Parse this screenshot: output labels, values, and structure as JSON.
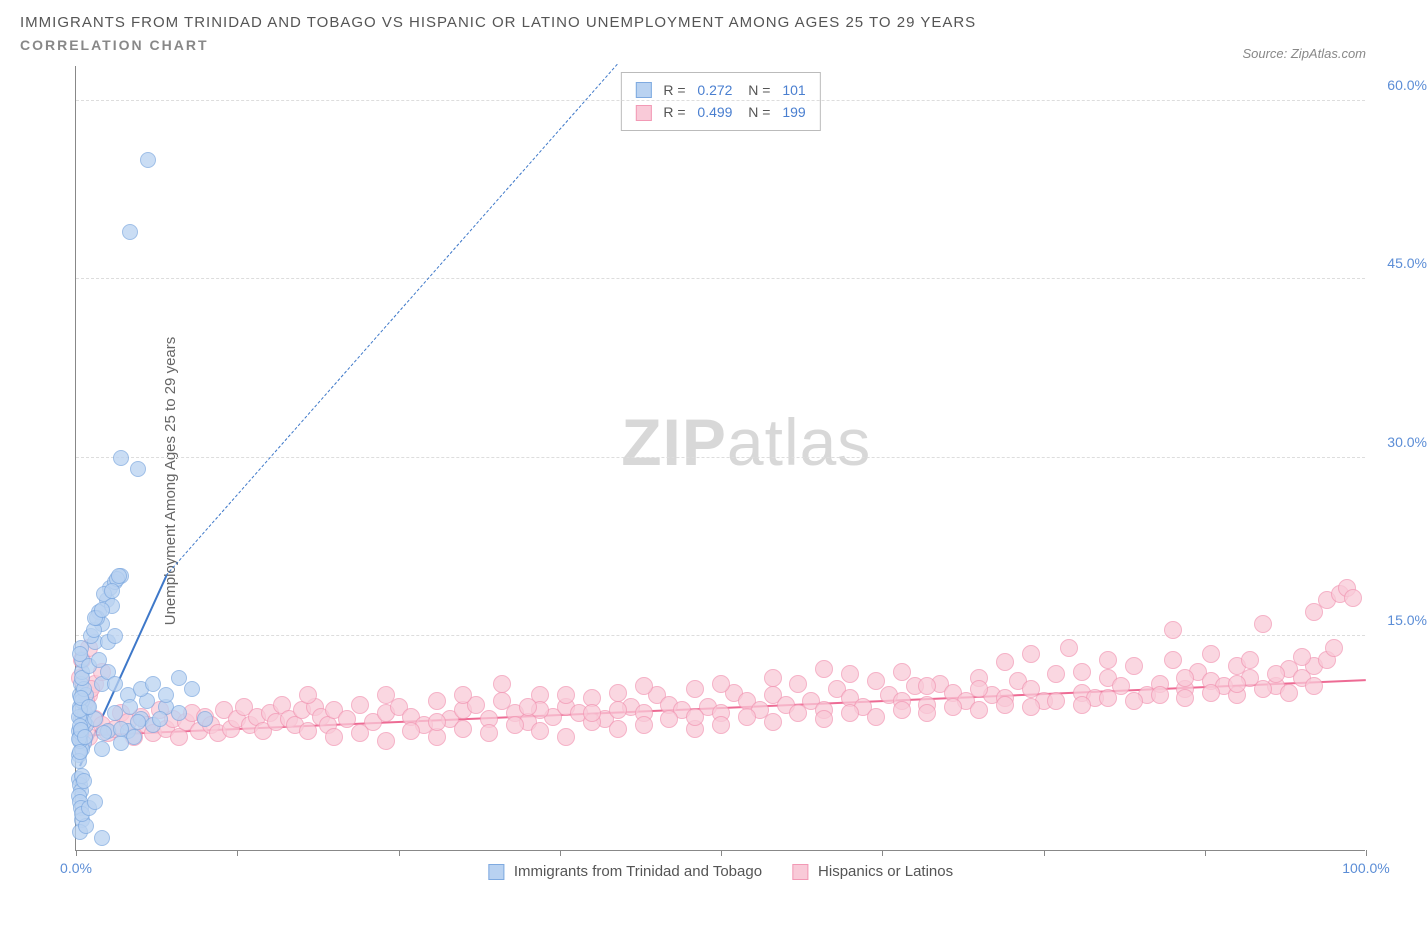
{
  "header": {
    "title": "IMMIGRANTS FROM TRINIDAD AND TOBAGO VS HISPANIC OR LATINO UNEMPLOYMENT AMONG AGES 25 TO 29 YEARS",
    "subtitle": "CORRELATION CHART",
    "source": "Source: ZipAtlas.com"
  },
  "chart": {
    "type": "scatter",
    "ylabel": "Unemployment Among Ages 25 to 29 years",
    "xlim": [
      0,
      100
    ],
    "ylim": [
      -3,
      63
    ],
    "xticks": [
      0,
      12.5,
      25,
      37.5,
      50,
      62.5,
      75,
      87.5,
      100
    ],
    "xtick_labels": {
      "0": "0.0%",
      "100": "100.0%"
    },
    "yticks": [
      15,
      30,
      45,
      60
    ],
    "ytick_labels": [
      "15.0%",
      "30.0%",
      "45.0%",
      "60.0%"
    ],
    "grid_color": "#dddddd",
    "axis_color": "#888888",
    "background_color": "#ffffff",
    "watermark": {
      "pre": "ZIP",
      "post": "atlas"
    },
    "series_a": {
      "name": "Immigrants from Trinidad and Tobago",
      "color_fill": "#b9d2f1",
      "color_stroke": "#7faae0",
      "marker_radius": 8,
      "R": "0.272",
      "N": "101",
      "trend": {
        "x1": 0.3,
        "y1": 4,
        "x2": 7,
        "y2": 20,
        "dash_to_x": 42,
        "dash_to_y": 63,
        "color": "#3e78c9"
      },
      "points": [
        [
          0.2,
          7
        ],
        [
          0.3,
          6.5
        ],
        [
          0.5,
          7.2
        ],
        [
          0.4,
          8
        ],
        [
          0.6,
          6
        ],
        [
          0.3,
          9
        ],
        [
          0.8,
          7.5
        ],
        [
          0.2,
          5
        ],
        [
          0.5,
          5.5
        ],
        [
          0.3,
          10
        ],
        [
          0.7,
          8.5
        ],
        [
          0.4,
          11
        ],
        [
          0.9,
          9
        ],
        [
          0.5,
          12
        ],
        [
          0.3,
          6.2
        ],
        [
          0.6,
          7.8
        ],
        [
          0.2,
          8.2
        ],
        [
          0.4,
          6.8
        ],
        [
          0.8,
          10
        ],
        [
          0.3,
          7.4
        ],
        [
          0.5,
          9.5
        ],
        [
          0.6,
          10.5
        ],
        [
          0.2,
          6.3
        ],
        [
          0.4,
          7.1
        ],
        [
          0.3,
          8.8
        ],
        [
          0.7,
          6.5
        ],
        [
          0.5,
          11.5
        ],
        [
          0.2,
          4.5
        ],
        [
          0.3,
          5.2
        ],
        [
          0.4,
          9.8
        ],
        [
          0.2,
          3
        ],
        [
          0.3,
          2.5
        ],
        [
          0.5,
          3.2
        ],
        [
          0.4,
          2
        ],
        [
          0.6,
          2.8
        ],
        [
          0.2,
          1.5
        ],
        [
          0.3,
          1
        ],
        [
          0.4,
          0.5
        ],
        [
          0.5,
          -0.5
        ],
        [
          0.3,
          -1.5
        ],
        [
          0.8,
          -1
        ],
        [
          0.5,
          13
        ],
        [
          0.4,
          14
        ],
        [
          0.3,
          13.5
        ],
        [
          1.0,
          12.5
        ],
        [
          1.5,
          14.5
        ],
        [
          2.0,
          16
        ],
        [
          1.8,
          17
        ],
        [
          2.4,
          18
        ],
        [
          2.6,
          19
        ],
        [
          2.2,
          18.5
        ],
        [
          3.0,
          19.5
        ],
        [
          1.2,
          15
        ],
        [
          1.4,
          15.5
        ],
        [
          1.6,
          16.5
        ],
        [
          2.8,
          17.5
        ],
        [
          3.5,
          20
        ],
        [
          3.2,
          19.8
        ],
        [
          4,
          7
        ],
        [
          5,
          8
        ],
        [
          6,
          7.5
        ],
        [
          7,
          9
        ],
        [
          8,
          8.5
        ],
        [
          9,
          10.5
        ],
        [
          4.5,
          6.5
        ],
        [
          5.5,
          9.5
        ],
        [
          6.5,
          8
        ],
        [
          10,
          8
        ],
        [
          3.5,
          6
        ],
        [
          2.5,
          7
        ],
        [
          2,
          5.5
        ],
        [
          1.5,
          8
        ],
        [
          1,
          9
        ],
        [
          3,
          8.5
        ],
        [
          4,
          10
        ],
        [
          2,
          11
        ],
        [
          2.5,
          12
        ],
        [
          1.8,
          13
        ],
        [
          3,
          11
        ],
        [
          4.2,
          9
        ],
        [
          5,
          10.5
        ],
        [
          6,
          11
        ],
        [
          7,
          10
        ],
        [
          8,
          11.5
        ],
        [
          3.5,
          7.2
        ],
        [
          4.8,
          7.8
        ],
        [
          2.2,
          6.8
        ],
        [
          5.6,
          55
        ],
        [
          4.2,
          49
        ],
        [
          3.5,
          30
        ],
        [
          4.8,
          29
        ],
        [
          2.5,
          14.5
        ],
        [
          3,
          15
        ],
        [
          1.5,
          16.5
        ],
        [
          2,
          17.2
        ],
        [
          2.8,
          18.8
        ],
        [
          3.3,
          20
        ],
        [
          0.5,
          0
        ],
        [
          1,
          0.5
        ],
        [
          1.5,
          1
        ],
        [
          2,
          -2
        ]
      ]
    },
    "series_b": {
      "name": "Hispanics or Latinos",
      "color_fill": "#f9cad8",
      "color_stroke": "#f299b5",
      "marker_radius": 9,
      "R": "0.499",
      "N": "199",
      "trend": {
        "x1": 0,
        "y1": 6.5,
        "x2": 100,
        "y2": 11.2,
        "color": "#ed6b94"
      },
      "points": [
        [
          0.5,
          7
        ],
        [
          1,
          6.5
        ],
        [
          1.5,
          8
        ],
        [
          2,
          7.5
        ],
        [
          2.5,
          6.8
        ],
        [
          3,
          7.2
        ],
        [
          3.5,
          8.5
        ],
        [
          4,
          7.8
        ],
        [
          4.5,
          6.5
        ],
        [
          5,
          8.2
        ],
        [
          5.5,
          7.5
        ],
        [
          6,
          6.8
        ],
        [
          6.5,
          8.8
        ],
        [
          7,
          7.2
        ],
        [
          7.5,
          8
        ],
        [
          8,
          6.5
        ],
        [
          8.5,
          7.8
        ],
        [
          9,
          8.5
        ],
        [
          9.5,
          7
        ],
        [
          10,
          8.2
        ],
        [
          10.5,
          7.5
        ],
        [
          11,
          6.8
        ],
        [
          11.5,
          8.8
        ],
        [
          12,
          7.2
        ],
        [
          12.5,
          8
        ],
        [
          13,
          9
        ],
        [
          13.5,
          7.5
        ],
        [
          14,
          8.2
        ],
        [
          14.5,
          7
        ],
        [
          15,
          8.5
        ],
        [
          15.5,
          7.8
        ],
        [
          16,
          9.2
        ],
        [
          16.5,
          8
        ],
        [
          17,
          7.5
        ],
        [
          17.5,
          8.8
        ],
        [
          18,
          7
        ],
        [
          18.5,
          9
        ],
        [
          19,
          8.2
        ],
        [
          19.5,
          7.5
        ],
        [
          20,
          8.8
        ],
        [
          21,
          8
        ],
        [
          22,
          9.2
        ],
        [
          23,
          7.8
        ],
        [
          24,
          8.5
        ],
        [
          25,
          9
        ],
        [
          26,
          8.2
        ],
        [
          27,
          7.5
        ],
        [
          28,
          9.5
        ],
        [
          29,
          8
        ],
        [
          30,
          8.8
        ],
        [
          31,
          9.2
        ],
        [
          32,
          8
        ],
        [
          33,
          9.5
        ],
        [
          34,
          8.5
        ],
        [
          35,
          7.8
        ],
        [
          36,
          10
        ],
        [
          37,
          8.2
        ],
        [
          38,
          9
        ],
        [
          39,
          8.5
        ],
        [
          40,
          9.8
        ],
        [
          41,
          8
        ],
        [
          42,
          10.2
        ],
        [
          43,
          9
        ],
        [
          44,
          8.5
        ],
        [
          45,
          10
        ],
        [
          46,
          9.2
        ],
        [
          47,
          8.8
        ],
        [
          48,
          10.5
        ],
        [
          49,
          9
        ],
        [
          50,
          8.5
        ],
        [
          51,
          10.2
        ],
        [
          52,
          9.5
        ],
        [
          53,
          8.8
        ],
        [
          54,
          10
        ],
        [
          55,
          9.2
        ],
        [
          56,
          11
        ],
        [
          57,
          9.5
        ],
        [
          58,
          8.8
        ],
        [
          59,
          10.5
        ],
        [
          60,
          9.8
        ],
        [
          61,
          9
        ],
        [
          62,
          11.2
        ],
        [
          63,
          10
        ],
        [
          64,
          9.5
        ],
        [
          65,
          10.8
        ],
        [
          66,
          9.2
        ],
        [
          67,
          11
        ],
        [
          68,
          10.2
        ],
        [
          69,
          9.5
        ],
        [
          70,
          11.5
        ],
        [
          71,
          10
        ],
        [
          72,
          9.8
        ],
        [
          73,
          11.2
        ],
        [
          74,
          10.5
        ],
        [
          75,
          9.5
        ],
        [
          76,
          11.8
        ],
        [
          77,
          14
        ],
        [
          78,
          10.2
        ],
        [
          79,
          9.8
        ],
        [
          80,
          11.5
        ],
        [
          81,
          10.8
        ],
        [
          82,
          12.5
        ],
        [
          83,
          10
        ],
        [
          84,
          11
        ],
        [
          85,
          15.5
        ],
        [
          86,
          10.5
        ],
        [
          87,
          12
        ],
        [
          88,
          11.2
        ],
        [
          89,
          10.8
        ],
        [
          90,
          12.5
        ],
        [
          91,
          11.5
        ],
        [
          92,
          16
        ],
        [
          93,
          10.8
        ],
        [
          94,
          12.2
        ],
        [
          95,
          11.5
        ],
        [
          96,
          17
        ],
        [
          97,
          18
        ],
        [
          98,
          18.5
        ],
        [
          98.5,
          19
        ],
        [
          99,
          18.2
        ],
        [
          1,
          10
        ],
        [
          1.5,
          11
        ],
        [
          2,
          12
        ],
        [
          0.5,
          13
        ],
        [
          1,
          14
        ],
        [
          0.8,
          9.5
        ],
        [
          1.2,
          10.5
        ],
        [
          0.3,
          11.5
        ],
        [
          20,
          6.5
        ],
        [
          22,
          6.8
        ],
        [
          24,
          6.2
        ],
        [
          26,
          7
        ],
        [
          28,
          6.5
        ],
        [
          30,
          7.2
        ],
        [
          32,
          6.8
        ],
        [
          34,
          7.5
        ],
        [
          36,
          7
        ],
        [
          38,
          6.5
        ],
        [
          40,
          7.8
        ],
        [
          42,
          7.2
        ],
        [
          44,
          7.5
        ],
        [
          46,
          8
        ],
        [
          48,
          7.2
        ],
        [
          50,
          7.5
        ],
        [
          52,
          8.2
        ],
        [
          54,
          7.8
        ],
        [
          56,
          8.5
        ],
        [
          58,
          8
        ],
        [
          60,
          8.5
        ],
        [
          62,
          8.2
        ],
        [
          64,
          8.8
        ],
        [
          66,
          8.5
        ],
        [
          68,
          9
        ],
        [
          70,
          8.8
        ],
        [
          72,
          9.2
        ],
        [
          74,
          9
        ],
        [
          76,
          9.5
        ],
        [
          78,
          9.2
        ],
        [
          80,
          9.8
        ],
        [
          82,
          9.5
        ],
        [
          84,
          10
        ],
        [
          86,
          9.8
        ],
        [
          88,
          10.2
        ],
        [
          90,
          10
        ],
        [
          92,
          10.5
        ],
        [
          94,
          10.2
        ],
        [
          96,
          10.8
        ],
        [
          96,
          12.5
        ],
        [
          97,
          13
        ],
        [
          97.5,
          14
        ],
        [
          85,
          13
        ],
        [
          86,
          11.5
        ],
        [
          88,
          13.5
        ],
        [
          90,
          11
        ],
        [
          91,
          13
        ],
        [
          93,
          11.8
        ],
        [
          95,
          13.2
        ],
        [
          74,
          13.5
        ],
        [
          78,
          12
        ],
        [
          80,
          13
        ],
        [
          70,
          10.5
        ],
        [
          72,
          12.8
        ],
        [
          64,
          12
        ],
        [
          66,
          10.8
        ],
        [
          60,
          11.8
        ],
        [
          58,
          12.2
        ],
        [
          33,
          11
        ],
        [
          36,
          8.8
        ],
        [
          42,
          8.8
        ],
        [
          48,
          8.2
        ],
        [
          50,
          11
        ],
        [
          54,
          11.5
        ],
        [
          44,
          10.8
        ],
        [
          40,
          8.5
        ],
        [
          38,
          10
        ],
        [
          35,
          9
        ],
        [
          30,
          10
        ],
        [
          28,
          7.8
        ],
        [
          24,
          10
        ],
        [
          18,
          10
        ]
      ]
    }
  }
}
